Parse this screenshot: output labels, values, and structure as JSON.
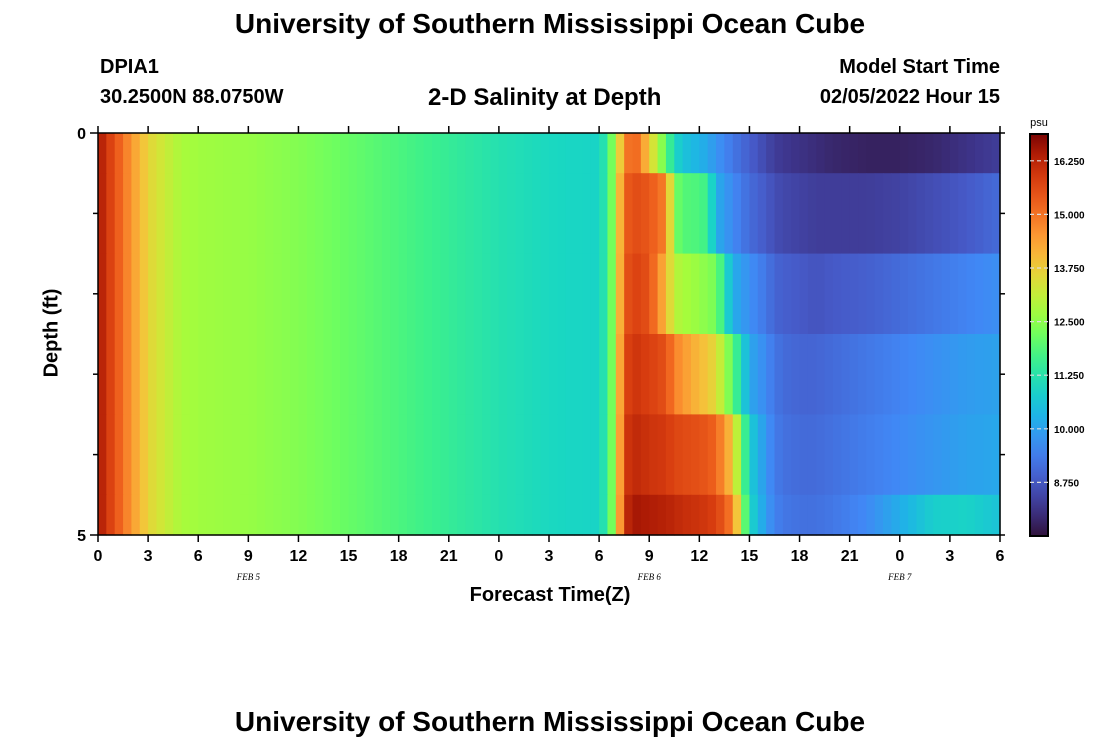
{
  "header": {
    "title": "University of Southern Mississippi Ocean Cube",
    "station": "DPIA1",
    "coordinates": "30.2500N  88.0750W",
    "subtitle": "2-D Salinity at Depth",
    "model_start_label": "Model Start Time",
    "model_start_value": "02/05/2022 Hour 15"
  },
  "footer": {
    "next_title": "University of Southern Mississippi Ocean Cube"
  },
  "chart_data": {
    "type": "heatmap",
    "title": "2-D Salinity at Depth",
    "xlabel": "Forecast Time(Z)",
    "ylabel": "Depth (ft)",
    "x_tick_labels": [
      "0",
      "3",
      "6",
      "9",
      "12",
      "15",
      "18",
      "21",
      "0",
      "3",
      "6",
      "9",
      "12",
      "15",
      "18",
      "21",
      "0",
      "3",
      "6"
    ],
    "x_date_labels": [
      "FEB 5",
      "FEB 6",
      "FEB 7"
    ],
    "x_range_hours": [
      0,
      54
    ],
    "y_tick_labels": [
      "0",
      "5"
    ],
    "y_range": [
      0,
      5
    ],
    "n_layers": 5,
    "colorbar": {
      "unit": "psu",
      "range": [
        7.5,
        16.875
      ],
      "tick_labels": [
        "16.250",
        "15.000",
        "13.750",
        "12.500",
        "11.250",
        "10.000",
        "8.750"
      ],
      "tick_values": [
        16.25,
        15.0,
        13.75,
        12.5,
        11.25,
        10.0,
        8.75
      ]
    },
    "profile_hours": [
      0,
      1,
      2,
      3,
      4,
      5,
      6,
      9,
      12,
      15,
      18,
      21,
      24,
      27,
      30,
      30.5,
      31,
      31.5,
      32,
      33,
      34,
      34.5,
      35,
      36,
      36.5,
      37,
      38,
      39,
      40,
      40.5,
      41,
      42,
      43,
      44,
      46,
      48,
      50,
      52,
      54
    ],
    "salinity": [
      [
        16.5,
        15.5,
        14.5,
        13.6,
        13.2,
        12.8,
        12.7,
        12.6,
        12.4,
        12.1,
        11.8,
        11.5,
        11.2,
        11.0,
        10.9,
        11.5,
        13.0,
        14.5,
        15.5,
        13.8,
        12.0,
        11.0,
        10.6,
        10.3,
        10.1,
        9.8,
        9.3,
        8.9,
        8.5,
        8.3,
        8.2,
        8.1,
        8.0,
        7.9,
        7.8,
        7.8,
        7.9,
        8.1,
        8.3
      ],
      [
        16.5,
        15.5,
        14.5,
        13.6,
        13.2,
        12.8,
        12.7,
        12.6,
        12.4,
        12.1,
        11.8,
        11.5,
        11.2,
        11.0,
        10.9,
        11.5,
        13.0,
        15.2,
        15.6,
        15.4,
        14.8,
        12.3,
        11.9,
        11.8,
        11.6,
        10.2,
        9.6,
        9.1,
        8.8,
        8.6,
        8.5,
        8.4,
        8.3,
        8.3,
        8.3,
        8.4,
        8.6,
        8.8,
        9.1
      ],
      [
        16.5,
        15.5,
        14.5,
        13.6,
        13.2,
        12.8,
        12.7,
        12.6,
        12.4,
        12.1,
        11.8,
        11.5,
        11.2,
        11.0,
        10.9,
        11.5,
        13.0,
        15.3,
        15.8,
        15.5,
        14.0,
        13.0,
        12.8,
        12.6,
        12.4,
        12.3,
        10.2,
        9.7,
        9.3,
        9.0,
        8.9,
        8.8,
        8.7,
        8.8,
        8.9,
        9.1,
        9.3,
        9.5,
        9.7
      ],
      [
        16.5,
        15.5,
        14.5,
        13.6,
        13.2,
        12.8,
        12.7,
        12.6,
        12.4,
        12.1,
        11.8,
        11.5,
        11.2,
        11.0,
        10.9,
        11.5,
        13.0,
        15.6,
        16.0,
        15.8,
        15.5,
        14.8,
        14.5,
        14.0,
        13.8,
        13.5,
        12.0,
        10.1,
        9.6,
        9.3,
        9.1,
        9.0,
        9.0,
        9.1,
        9.3,
        9.5,
        9.7,
        9.9,
        10.0
      ],
      [
        16.5,
        15.5,
        14.5,
        13.6,
        13.2,
        12.8,
        12.7,
        12.6,
        12.4,
        12.1,
        11.8,
        11.5,
        11.2,
        11.0,
        10.9,
        11.5,
        13.0,
        15.8,
        16.2,
        16.0,
        15.9,
        15.7,
        15.6,
        15.5,
        15.4,
        15.2,
        13.8,
        10.8,
        9.8,
        9.4,
        9.2,
        9.1,
        9.1,
        9.2,
        9.4,
        9.6,
        9.8,
        10.0,
        10.1
      ],
      [
        16.5,
        15.5,
        14.5,
        13.6,
        13.2,
        12.8,
        12.7,
        12.6,
        12.4,
        12.1,
        11.8,
        11.5,
        11.2,
        11.0,
        10.9,
        11.5,
        13.0,
        16.0,
        16.5,
        16.4,
        16.3,
        16.2,
        16.1,
        16.0,
        15.9,
        15.8,
        14.8,
        11.0,
        9.9,
        9.5,
        9.3,
        9.2,
        9.2,
        9.3,
        9.6,
        10.2,
        10.8,
        10.9,
        10.6
      ]
    ]
  }
}
